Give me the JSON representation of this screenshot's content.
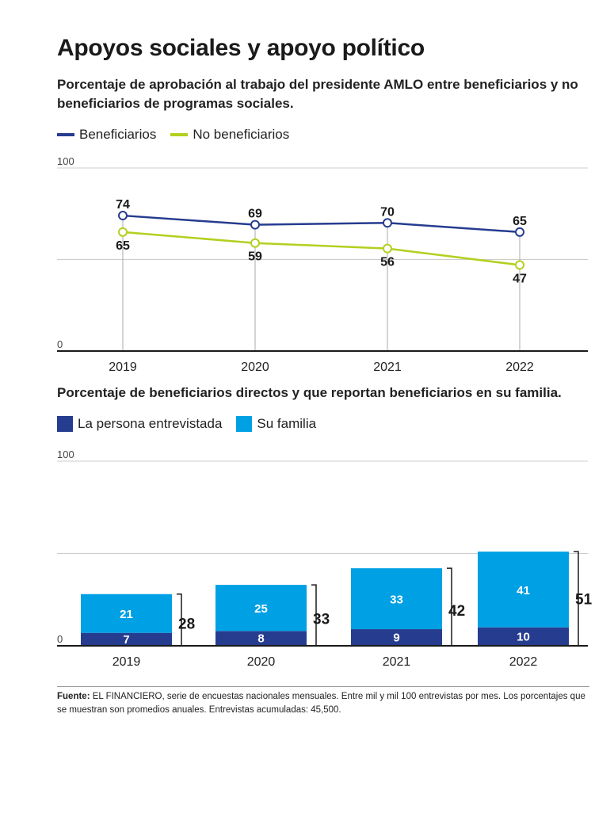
{
  "title": "Apoyos sociales y apoyo político",
  "colors": {
    "beneficiarios": "#263c8f",
    "no_beneficiarios": "#b4cf1f",
    "persona": "#263c8f",
    "familia": "#00a0e4"
  },
  "chart_data": [
    {
      "type": "line",
      "subtitle": "Porcentaje de aprobación al trabajo del presidente AMLO entre beneficiarios y no beneficiarios de programas sociales.",
      "x": [
        "2019",
        "2020",
        "2021",
        "2022"
      ],
      "series": [
        {
          "name": "Beneficiarios",
          "values": [
            74,
            69,
            70,
            65
          ]
        },
        {
          "name": "No beneficiarios",
          "values": [
            65,
            59,
            56,
            47
          ]
        }
      ],
      "ylim": [
        0,
        100
      ],
      "y_tick_labels": [
        "0",
        "100"
      ],
      "grid": true,
      "legend_position": "top-left"
    },
    {
      "type": "bar",
      "stacked": true,
      "subtitle": "Porcentaje de beneficiarios directos y que reportan beneficiarios en su familia.",
      "categories": [
        "2019",
        "2020",
        "2021",
        "2022"
      ],
      "series": [
        {
          "name": "La persona entrevistada",
          "values": [
            7,
            8,
            9,
            10
          ]
        },
        {
          "name": "Su familia",
          "values": [
            21,
            25,
            33,
            41
          ]
        }
      ],
      "totals": [
        28,
        33,
        42,
        51
      ],
      "ylim": [
        0,
        100
      ],
      "y_tick_labels": [
        "0",
        "100"
      ],
      "grid": true,
      "legend_position": "top-left"
    }
  ],
  "footer": {
    "source_label": "Fuente:",
    "source_text": "EL FINANCIERO, serie de encuestas nacionales mensuales. Entre mil y mil 100 entrevistas por mes. Los porcentajes que se muestran son promedios anuales. Entrevistas acumuladas: 45,500."
  }
}
